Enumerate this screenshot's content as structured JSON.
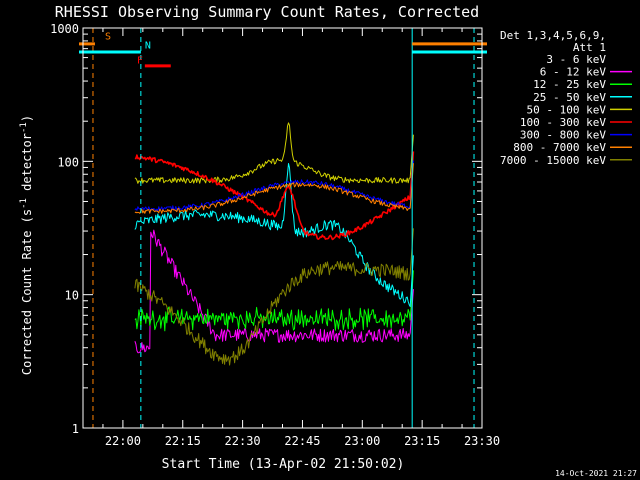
{
  "chart_data": {
    "type": "line",
    "title": "RHESSI Observing Summary Count Rates, Corrected",
    "xlabel": "Start Time (13-Apr-02 21:50:02)",
    "ylabel_main": "Corrected Count Rate (s",
    "ylabel_sup1": "-1",
    "ylabel_mid": " detector",
    "ylabel_sup2": "-1",
    "ylabel_end": ")",
    "timestamp": "14-Oct-2021 21:27",
    "x_start_min": 0,
    "x_end_min": 100,
    "xtick_labels": [
      "22:00",
      "22:15",
      "22:30",
      "22:45",
      "23:00",
      "23:15",
      "23:30"
    ],
    "xtick_minutes": [
      10,
      25,
      40,
      55,
      70,
      85,
      100
    ],
    "ylim": [
      1,
      1000
    ],
    "y_scale": "log",
    "ytick_labels": [
      "1",
      "10",
      "100",
      "1000"
    ],
    "ytick_values": [
      1,
      10,
      100,
      1000
    ],
    "legend_header": [
      "Det 1,3,4,5,6,9,",
      "Att 1"
    ],
    "series": [
      {
        "name": "3 - 6 keV",
        "color": "#000000"
      },
      {
        "name": "6 - 12 keV",
        "color": "#ff00ff"
      },
      {
        "name": "12 - 25 keV",
        "color": "#00ff00"
      },
      {
        "name": "25 - 50 keV",
        "color": "#00ffff"
      },
      {
        "name": "50 - 100 keV",
        "color": "#d0d000"
      },
      {
        "name": "100 - 300 keV",
        "color": "#ff0000"
      },
      {
        "name": "300 - 800 keV",
        "color": "#0000ff"
      },
      {
        "name": "800 - 7000 keV",
        "color": "#ff8000"
      },
      {
        "name": "7000 - 15000 keV",
        "color": "#808000"
      }
    ],
    "annotations": [
      {
        "label": "S",
        "color": "#ff8000"
      },
      {
        "label": "N",
        "color": "#00ffff"
      },
      {
        "label": "F",
        "color": "#ff0000"
      }
    ]
  }
}
